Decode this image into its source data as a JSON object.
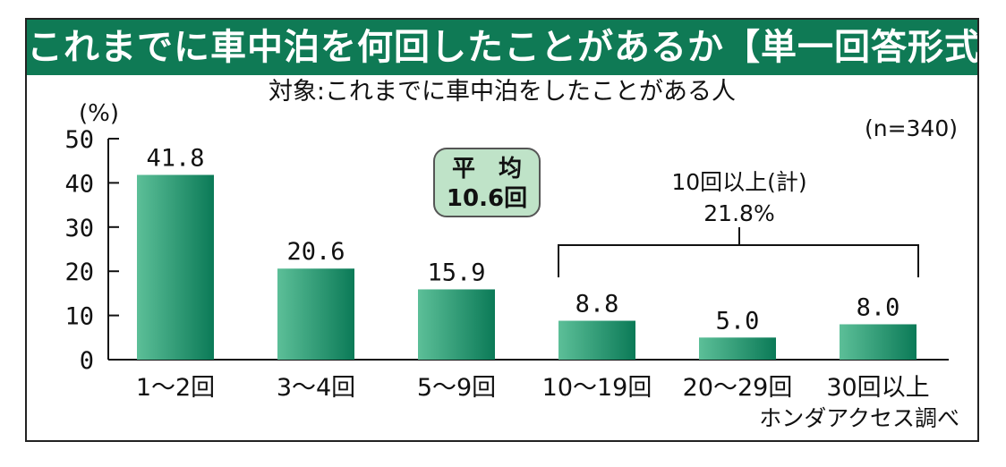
{
  "title": "これまでに車中泊を何回したことがあるか【単一回答形式】",
  "subtitle": "対象:これまでに車中泊をしたことがある人",
  "sample_size": "(n=340)",
  "source": "ホンダアクセス調べ",
  "average": {
    "label": "平　均",
    "value": "10.6回"
  },
  "bracket": {
    "label": "10回以上(計)",
    "value": "21.8%"
  },
  "colors": {
    "title_bg": "#0f7a55",
    "bar_dark": "#0b7a57",
    "bar_light": "#5cbf98",
    "avg_bg": "#bfe3c8"
  },
  "chart_data": {
    "type": "bar",
    "categories": [
      "1〜2回",
      "3〜4回",
      "5〜9回",
      "10〜19回",
      "20〜29回",
      "30回以上"
    ],
    "values": [
      41.8,
      20.6,
      15.9,
      8.8,
      5.0,
      8.0
    ],
    "value_labels": [
      "41.8",
      "20.6",
      "15.9",
      "8.8",
      "5.0",
      "8.0"
    ],
    "ylabel": "(%)",
    "ylim": [
      0,
      50
    ],
    "yticks": [
      0,
      10,
      20,
      30,
      40,
      50
    ],
    "ytick_labels": [
      "0",
      "10",
      "20",
      "30",
      "40",
      "50"
    ],
    "grid": false,
    "legend": "none"
  }
}
